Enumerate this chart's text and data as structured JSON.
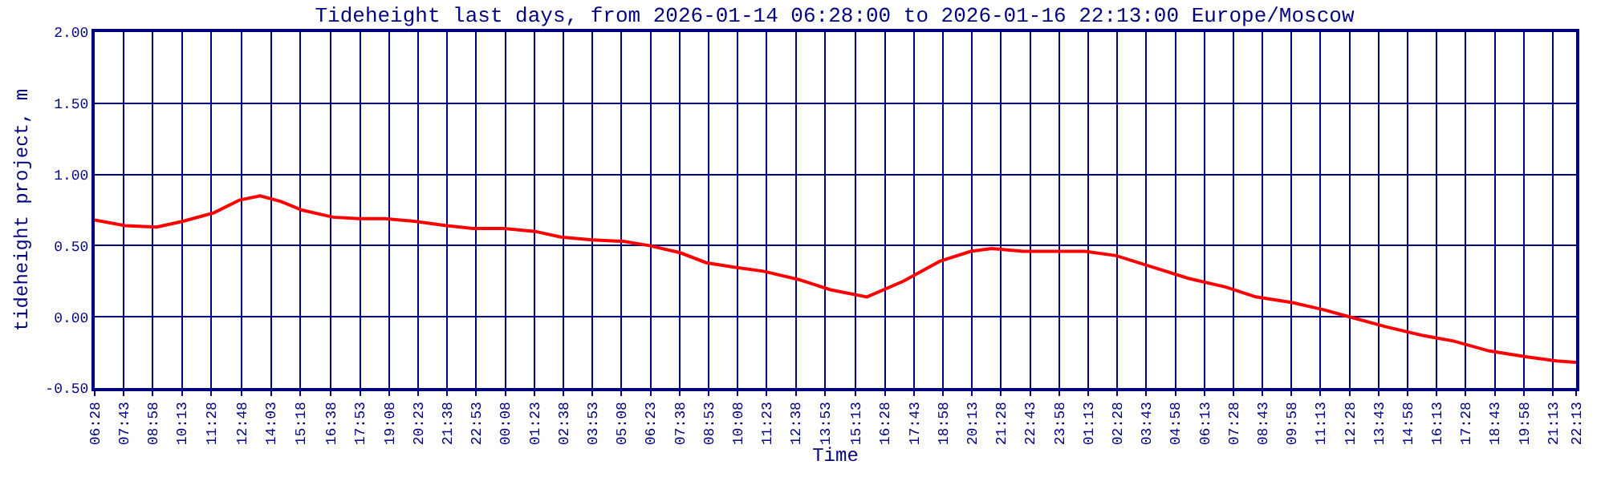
{
  "chart_data": {
    "type": "line",
    "title": "Tideheight last days, from 2026-01-14 06:28:00 to 2026-01-16 22:13:00 Europe/Moscow",
    "xlabel": "Time",
    "ylabel": "tideheight project, m",
    "x": [
      "2026-01-14T06:28",
      "2026-01-14T07:47",
      "2026-01-14T09:08",
      "2026-01-14T10:14",
      "2026-01-14T11:35",
      "2026-01-14T12:42",
      "2026-01-14T13:35",
      "2026-01-14T14:29",
      "2026-01-14T15:23",
      "2026-01-14T16:43",
      "2026-01-14T17:50",
      "2026-01-14T18:57",
      "2026-01-14T20:17",
      "2026-01-14T21:37",
      "2026-01-14T22:44",
      "2026-01-15T00:05",
      "2026-01-15T01:25",
      "2026-01-15T02:32",
      "2026-01-15T03:53",
      "2026-01-15T05:13",
      "2026-01-15T06:20",
      "2026-01-15T07:40",
      "2026-01-15T08:47",
      "2026-01-15T09:55",
      "2026-01-15T11:15",
      "2026-01-15T12:48",
      "2026-01-15T14:08",
      "2026-01-15T15:42",
      "2026-01-15T17:16",
      "2026-01-15T18:50",
      "2026-01-15T20:10",
      "2026-01-15T21:04",
      "2026-01-15T22:24",
      "2026-01-16T01:05",
      "2026-01-16T02:25",
      "2026-01-16T03:59",
      "2026-01-16T05:32",
      "2026-01-16T07:07",
      "2026-01-16T08:26",
      "2026-01-16T10:01",
      "2026-01-16T11:21",
      "2026-01-16T12:28",
      "2026-01-16T14:02",
      "2026-01-16T15:35",
      "2026-01-16T16:56",
      "2026-01-16T18:29",
      "2026-01-16T20:03",
      "2026-01-16T21:23",
      "2026-01-16T22:13"
    ],
    "series": [
      {
        "color": "#ff0000",
        "values": [
          0.68,
          0.64,
          0.63,
          0.67,
          0.73,
          0.82,
          0.85,
          0.81,
          0.75,
          0.7,
          0.69,
          0.69,
          0.67,
          0.64,
          0.62,
          0.62,
          0.6,
          0.56,
          0.54,
          0.53,
          0.5,
          0.45,
          0.38,
          0.35,
          0.32,
          0.26,
          0.19,
          0.14,
          0.25,
          0.39,
          0.46,
          0.48,
          0.46,
          0.46,
          0.43,
          0.35,
          0.27,
          0.21,
          0.14,
          0.1,
          0.05,
          0.0,
          -0.07,
          -0.13,
          -0.17,
          -0.24,
          -0.28,
          -0.31,
          -0.32
        ]
      }
    ],
    "xlim": [
      "2026-01-14T06:28",
      "2026-01-16T22:13"
    ],
    "xticks": [
      {
        "value": "2026-01-14T06:28",
        "label": "06:28"
      },
      {
        "value": "2026-01-14T07:43",
        "label": "07:43"
      },
      {
        "value": "2026-01-14T08:58",
        "label": "08:58"
      },
      {
        "value": "2026-01-14T10:13",
        "label": "10:13"
      },
      {
        "value": "2026-01-14T11:28",
        "label": "11:28"
      },
      {
        "value": "2026-01-14T12:48",
        "label": "12:48"
      },
      {
        "value": "2026-01-14T14:03",
        "label": "14:03"
      },
      {
        "value": "2026-01-14T15:18",
        "label": "15:18"
      },
      {
        "value": "2026-01-14T16:38",
        "label": "16:38"
      },
      {
        "value": "2026-01-14T17:53",
        "label": "17:53"
      },
      {
        "value": "2026-01-14T19:08",
        "label": "19:08"
      },
      {
        "value": "2026-01-14T20:23",
        "label": "20:23"
      },
      {
        "value": "2026-01-14T21:38",
        "label": "21:38"
      },
      {
        "value": "2026-01-14T22:53",
        "label": "22:53"
      },
      {
        "value": "2026-01-15T00:08",
        "label": "00:08"
      },
      {
        "value": "2026-01-15T01:23",
        "label": "01:23"
      },
      {
        "value": "2026-01-15T02:38",
        "label": "02:38"
      },
      {
        "value": "2026-01-15T03:53",
        "label": "03:53"
      },
      {
        "value": "2026-01-15T05:08",
        "label": "05:08"
      },
      {
        "value": "2026-01-15T06:23",
        "label": "06:23"
      },
      {
        "value": "2026-01-15T07:38",
        "label": "07:38"
      },
      {
        "value": "2026-01-15T08:53",
        "label": "08:53"
      },
      {
        "value": "2026-01-15T10:08",
        "label": "10:08"
      },
      {
        "value": "2026-01-15T11:23",
        "label": "11:23"
      },
      {
        "value": "2026-01-15T12:38",
        "label": "12:38"
      },
      {
        "value": "2026-01-15T13:53",
        "label": "13:53"
      },
      {
        "value": "2026-01-15T15:13",
        "label": "15:13"
      },
      {
        "value": "2026-01-15T16:28",
        "label": "16:28"
      },
      {
        "value": "2026-01-15T17:43",
        "label": "17:43"
      },
      {
        "value": "2026-01-15T18:58",
        "label": "18:58"
      },
      {
        "value": "2026-01-15T20:13",
        "label": "20:13"
      },
      {
        "value": "2026-01-15T21:28",
        "label": "21:28"
      },
      {
        "value": "2026-01-15T22:43",
        "label": "22:43"
      },
      {
        "value": "2026-01-15T23:58",
        "label": "23:58"
      },
      {
        "value": "2026-01-16T01:13",
        "label": "01:13"
      },
      {
        "value": "2026-01-16T02:28",
        "label": "02:28"
      },
      {
        "value": "2026-01-16T03:43",
        "label": "03:43"
      },
      {
        "value": "2026-01-16T04:58",
        "label": "04:58"
      },
      {
        "value": "2026-01-16T06:13",
        "label": "06:13"
      },
      {
        "value": "2026-01-16T07:28",
        "label": "07:28"
      },
      {
        "value": "2026-01-16T08:43",
        "label": "08:43"
      },
      {
        "value": "2026-01-16T09:58",
        "label": "09:58"
      },
      {
        "value": "2026-01-16T11:13",
        "label": "11:13"
      },
      {
        "value": "2026-01-16T12:28",
        "label": "12:28"
      },
      {
        "value": "2026-01-16T13:43",
        "label": "13:43"
      },
      {
        "value": "2026-01-16T14:58",
        "label": "14:58"
      },
      {
        "value": "2026-01-16T16:13",
        "label": "16:13"
      },
      {
        "value": "2026-01-16T17:28",
        "label": "17:28"
      },
      {
        "value": "2026-01-16T18:43",
        "label": "18:43"
      },
      {
        "value": "2026-01-16T19:58",
        "label": "19:58"
      },
      {
        "value": "2026-01-16T21:13",
        "label": "21:13"
      },
      {
        "value": "2026-01-16T22:13",
        "label": "22:13"
      }
    ],
    "ylim": [
      -0.5,
      2.0
    ],
    "yticks": [
      {
        "value": -0.5,
        "label": "-0.50"
      },
      {
        "value": 0,
        "label": "0.00"
      },
      {
        "value": 0.5,
        "label": "0.50"
      },
      {
        "value": 1.0,
        "label": "1.00"
      },
      {
        "value": 1.5,
        "label": "1.50"
      },
      {
        "value": 2.0,
        "label": "2.00"
      }
    ],
    "grid": true,
    "line_style": "solid",
    "marker": "none"
  }
}
